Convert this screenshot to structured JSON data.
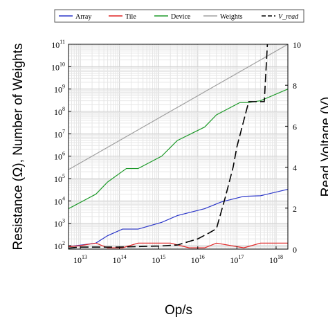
{
  "chart_data": {
    "type": "line",
    "x_scale": "log",
    "xlim": [
      5000000000000.0,
      2e+18
    ],
    "x_ticks": [
      10000000000000.0,
      100000000000000.0,
      1000000000000000.0,
      1e+16,
      1e+17,
      1e+18
    ],
    "xlabel": "Op/s",
    "y_left": {
      "scale": "log",
      "ylim": [
        70,
        100000000000.0
      ],
      "ticks": [
        100.0,
        1000.0,
        10000.0,
        100000.0,
        1000000.0,
        10000000.0,
        100000000.0,
        1000000000.0,
        10000000000.0,
        100000000000.0
      ],
      "label": "Resistance (Ω), Number of Weights"
    },
    "y_right": {
      "scale": "linear",
      "ylim": [
        0,
        10
      ],
      "ticks": [
        0,
        2,
        4,
        6,
        8,
        10
      ],
      "label": "Read Voltage (V)"
    },
    "grid": true,
    "legend_placement": "top",
    "colors": {
      "Array": "#2a35c9",
      "Tile": "#e02020",
      "Device": "#1e9a2a",
      "Weights": "#a0a0a0",
      "V_read": "#000000"
    },
    "series": [
      {
        "name": "Array",
        "axis": "left",
        "style": "solid",
        "x": [
          5000000000000.0,
          25000000000000.0,
          50000000000000.0,
          120000000000000.0,
          300000000000000.0,
          1200000000000000.0,
          3000000000000000.0,
          1.5e+16,
          4e+16,
          1.5e+17,
          4e+17,
          2e+18
        ],
        "y": [
          90,
          130,
          280,
          550,
          550,
          1100,
          2200,
          4500,
          9000,
          16000,
          17000,
          33000
        ]
      },
      {
        "name": "Tile",
        "axis": "left",
        "style": "solid",
        "x": [
          5000000000000.0,
          10000000000000.0,
          25000000000000.0,
          50000000000000.0,
          120000000000000.0,
          300000000000000.0,
          1000000000000000.0,
          2000000000000000.0,
          6000000000000000.0,
          1.5e+16,
          3e+16,
          1.5e+17,
          4e+17,
          2e+18
        ],
        "y": [
          90,
          100,
          130,
          80,
          80,
          130,
          130,
          130,
          80,
          80,
          130,
          80,
          130,
          130
        ]
      },
      {
        "name": "Device",
        "axis": "left",
        "style": "solid",
        "x": [
          5000000000000.0,
          25000000000000.0,
          50000000000000.0,
          150000000000000.0,
          300000000000000.0,
          1200000000000000.0,
          3000000000000000.0,
          1.5e+16,
          3e+16,
          1.2e+17,
          2e+17,
          4e+17,
          2e+18
        ],
        "y": [
          4500,
          20000,
          70000,
          280000,
          280000,
          1000000,
          5000000,
          20000000,
          70000000,
          250000000,
          250000000,
          300000000,
          1000000000
        ]
      },
      {
        "name": "Weights",
        "axis": "left",
        "style": "solid",
        "x": [
          5000000000000.0,
          2e+18
        ],
        "y": [
          250000,
          100000000000
        ]
      },
      {
        "name": "V_read",
        "axis": "right",
        "style": "dashed",
        "x": [
          5000000000000.0,
          10000000000000.0,
          100000000000000.0,
          1000000000000000.0,
          3000000000000000.0,
          1e+16,
          2e+16,
          3e+16,
          5e+16,
          8e+16,
          1e+17,
          2e+17,
          3e+17,
          5e+17,
          6e+17
        ],
        "y": [
          0.05,
          0.1,
          0.1,
          0.15,
          0.2,
          0.5,
          0.8,
          1.0,
          2.5,
          4.0,
          5.0,
          7.2,
          7.2,
          7.2,
          10.0
        ]
      }
    ],
    "legend": [
      {
        "label": "Array",
        "color": "#2a35c9",
        "dash": false
      },
      {
        "label": "Tile",
        "color": "#e02020",
        "dash": false
      },
      {
        "label": "Device",
        "color": "#1e9a2a",
        "dash": false
      },
      {
        "label": "Weights",
        "color": "#a0a0a0",
        "dash": false
      },
      {
        "label": "V_read",
        "color": "#000000",
        "dash": true
      }
    ]
  }
}
